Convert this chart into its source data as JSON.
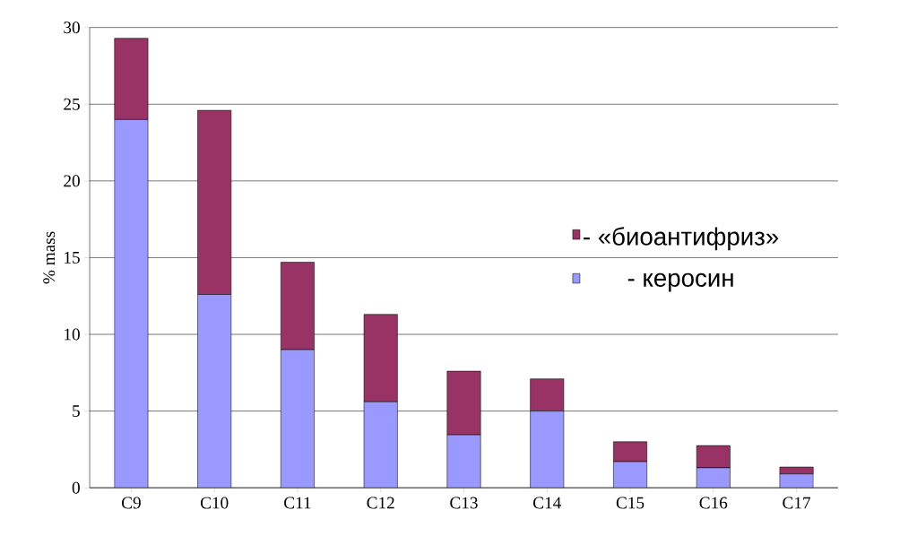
{
  "chart_data": {
    "type": "bar",
    "stacked": true,
    "ylabel": "% mass",
    "categories": [
      "C9",
      "C10",
      "C11",
      "C12",
      "C13",
      "C14",
      "C15",
      "C16",
      "C17"
    ],
    "series": [
      {
        "name": "- керосин",
        "color": "#9999ff",
        "values": [
          24.0,
          12.6,
          9.0,
          5.6,
          3.45,
          5.0,
          1.7,
          1.3,
          0.9
        ]
      },
      {
        "name": "- «биоантифриз»",
        "color": "#993366",
        "values": [
          5.3,
          12.0,
          5.7,
          5.7,
          4.15,
          2.1,
          1.3,
          1.45,
          0.45
        ]
      }
    ],
    "ylim": [
      0,
      30
    ],
    "yticks": [
      0,
      5,
      10,
      15,
      20,
      25,
      30
    ],
    "grid": "y",
    "legend": "right"
  }
}
